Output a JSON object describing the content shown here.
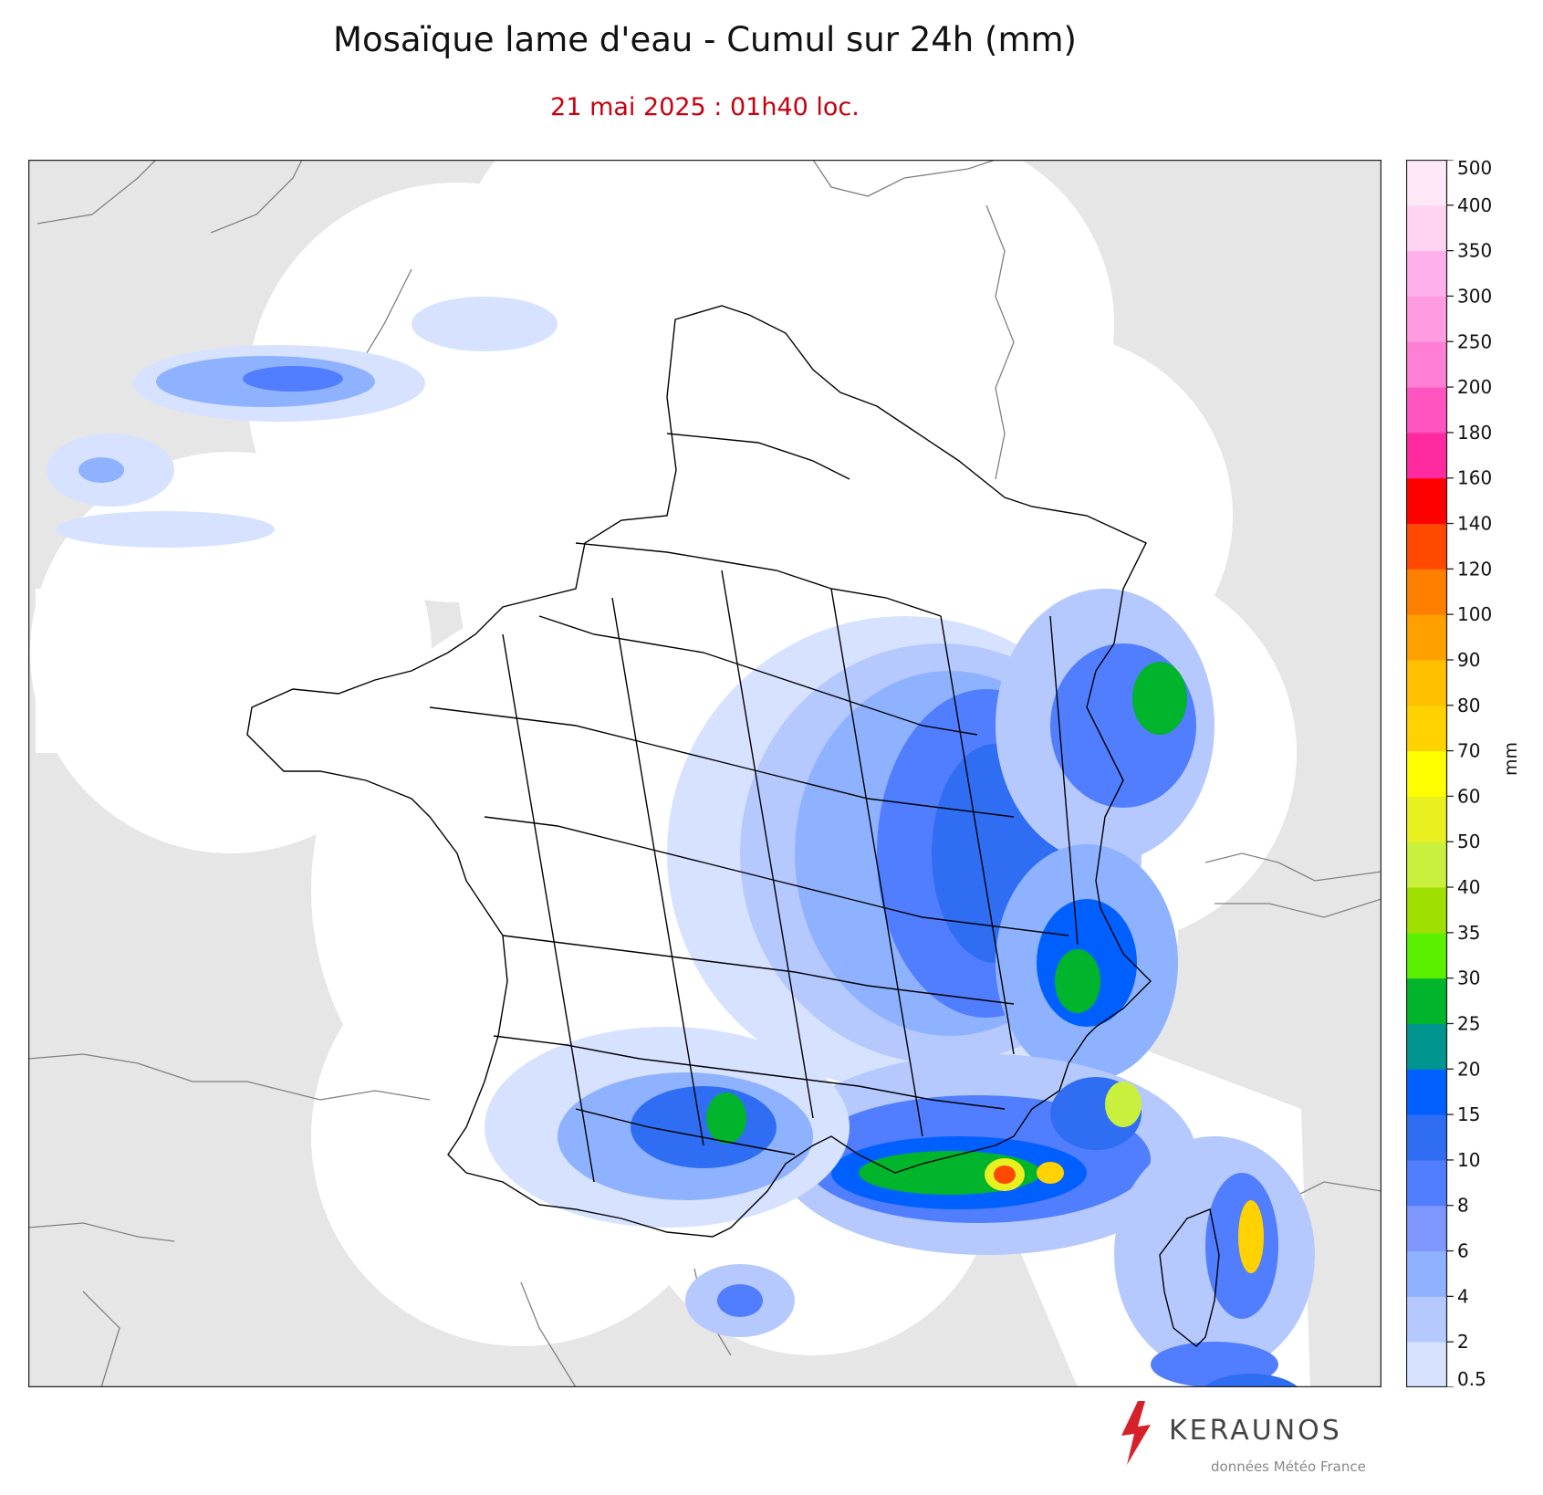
{
  "title": "Mosaïque lame d'eau - Cumul sur 24h (mm)",
  "subtitle": "21 mai 2025 : 01h40 loc.",
  "colorbar": {
    "unit": "mm",
    "levels": [
      {
        "label": "0.5",
        "color": "#d6e2ff"
      },
      {
        "label": "2",
        "color": "#b5c9ff"
      },
      {
        "label": "4",
        "color": "#8eb2ff"
      },
      {
        "label": "6",
        "color": "#7f96ff"
      },
      {
        "label": "8",
        "color": "#517dff"
      },
      {
        "label": "10",
        "color": "#2f6ef3"
      },
      {
        "label": "15",
        "color": "#0060ff"
      },
      {
        "label": "20",
        "color": "#00968f"
      },
      {
        "label": "25",
        "color": "#00b42c"
      },
      {
        "label": "30",
        "color": "#5af000"
      },
      {
        "label": "35",
        "color": "#a0e000"
      },
      {
        "label": "40",
        "color": "#c8f03c"
      },
      {
        "label": "50",
        "color": "#e8f020"
      },
      {
        "label": "60",
        "color": "#ffff00"
      },
      {
        "label": "70",
        "color": "#ffd200"
      },
      {
        "label": "80",
        "color": "#ffc000"
      },
      {
        "label": "90",
        "color": "#ffa000"
      },
      {
        "label": "100",
        "color": "#ff8000"
      },
      {
        "label": "120",
        "color": "#ff4800"
      },
      {
        "label": "140",
        "color": "#ff0000"
      },
      {
        "label": "160",
        "color": "#ff2aa0"
      },
      {
        "label": "180",
        "color": "#ff55c0"
      },
      {
        "label": "200",
        "color": "#ff7fd6"
      },
      {
        "label": "250",
        "color": "#ff9be0"
      },
      {
        "label": "300",
        "color": "#ffb0ea"
      },
      {
        "label": "350",
        "color": "#ffd4f2"
      },
      {
        "label": "400",
        "color": "#ffe8f8"
      },
      {
        "label": "500",
        "color": "#d8d8d8"
      }
    ]
  },
  "map": {
    "background_color": "#e6e6e6",
    "radar_coverage_color": "#ffffff",
    "border_color": "#000000",
    "neighbor_border_color": "#808080"
  },
  "brand": {
    "name": "KERAUNOS",
    "source": "données Météo France",
    "logo_icon": "lightning-bolt-icon",
    "accent_color": "#d6202a"
  }
}
